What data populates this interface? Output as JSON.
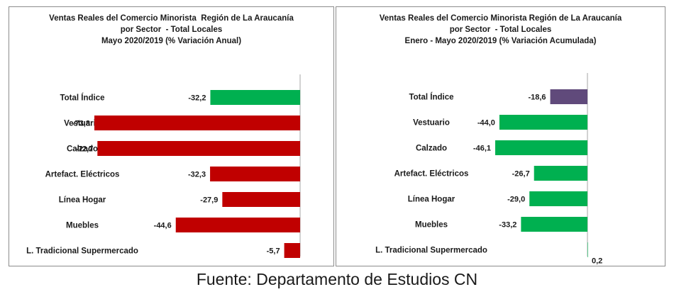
{
  "chart_data": [
    {
      "type": "bar",
      "orientation": "horizontal",
      "title_lines": [
        "Ventas Reales del Comercio Minorista  Región de La Araucanía",
        "por Sector  - Total Locales",
        "Mayo 2020/2019 (% Variación Anual)"
      ],
      "categories": [
        "Total Índice",
        "Vestuario",
        "Calzado",
        "Artefact. Eléctricos",
        "Línea Hogar",
        "Muebles",
        "L. Tradicional Supermercado"
      ],
      "values": [
        -32.2,
        -73.8,
        -72.7,
        -32.3,
        -27.9,
        -44.6,
        -5.7
      ],
      "labels": [
        "-32,2",
        "-73,8",
        "-72,7",
        "-32,3",
        "-27,9",
        "-44,6",
        "-5,7"
      ],
      "colors": [
        "#00b050",
        "#c00000",
        "#c00000",
        "#c00000",
        "#c00000",
        "#c00000",
        "#c00000"
      ],
      "xlim": [
        -80,
        0
      ],
      "grid": false,
      "legend": "none"
    },
    {
      "type": "bar",
      "orientation": "horizontal",
      "title_lines": [
        "Ventas Reales del Comercio Minorista Región de La Araucanía",
        "por Sector  - Total Locales",
        "Enero - Mayo 2020/2019 (% Variación Acumulada)"
      ],
      "categories": [
        "Total Índice",
        "Vestuario",
        "Calzado",
        "Artefact. Eléctricos",
        "Línea Hogar",
        "Muebles",
        "L. Tradicional Supermercado"
      ],
      "values": [
        -18.6,
        -44.0,
        -46.1,
        -26.7,
        -29.0,
        -33.2,
        0.2
      ],
      "labels": [
        "-18,6",
        "-44,0",
        "-46,1",
        "-26,7",
        "-29,0",
        "-33,2",
        "0,2"
      ],
      "colors": [
        "#604a7b",
        "#00b050",
        "#00b050",
        "#00b050",
        "#00b050",
        "#00b050",
        "#00b050"
      ],
      "xlim": [
        -50,
        0
      ],
      "grid": false,
      "legend": "none"
    }
  ],
  "source": "Fuente: Departamento de Estudios CN"
}
